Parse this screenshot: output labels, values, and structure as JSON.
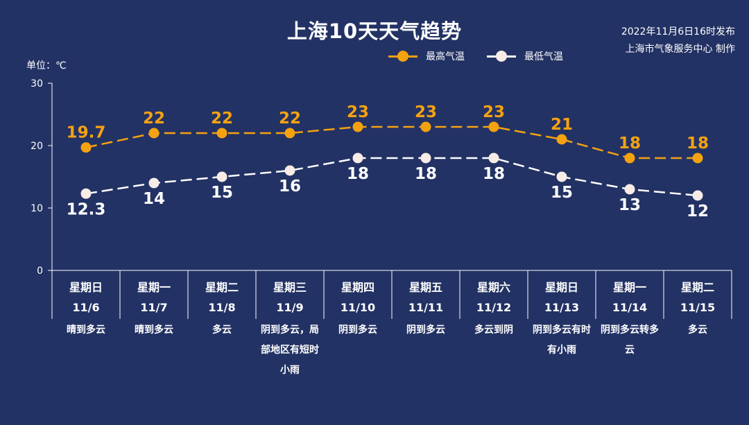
{
  "title": "上海10天天气趋势",
  "publish": {
    "line1": "2022年11月6日16时发布",
    "line2": "上海市气象服务中心 制作"
  },
  "unit_label": "单位：℃",
  "legend": {
    "high": "最高气温",
    "low": "最低气温"
  },
  "colors": {
    "background": "#233264",
    "high": "#f5a211",
    "low": "#ffffff",
    "low_marker": "#f7ece6"
  },
  "days": [
    {
      "weekday": "星期日",
      "date": "11/6",
      "weather": "晴到多云"
    },
    {
      "weekday": "星期一",
      "date": "11/7",
      "weather": "晴到多云"
    },
    {
      "weekday": "星期二",
      "date": "11/8",
      "weather": "多云"
    },
    {
      "weekday": "星期三",
      "date": "11/9",
      "weather": "阴到多云，局部地区有短时小雨"
    },
    {
      "weekday": "星期四",
      "date": "11/10",
      "weather": "阴到多云"
    },
    {
      "weekday": "星期五",
      "date": "11/11",
      "weather": "阴到多云"
    },
    {
      "weekday": "星期六",
      "date": "11/12",
      "weather": "多云到阴"
    },
    {
      "weekday": "星期日",
      "date": "11/13",
      "weather": "阴到多云有时有小雨"
    },
    {
      "weekday": "星期一",
      "date": "11/14",
      "weather": "阴到多云转多云"
    },
    {
      "weekday": "星期二",
      "date": "11/15",
      "weather": "多云"
    }
  ],
  "chart_data": {
    "type": "line",
    "title": "上海10天天气趋势",
    "ylabel": "单位：℃",
    "ylim": [
      0,
      30
    ],
    "yticks": [
      0,
      10,
      20,
      30
    ],
    "grid": false,
    "legend_position": "top-right",
    "categories": [
      "11/6",
      "11/7",
      "11/8",
      "11/9",
      "11/10",
      "11/11",
      "11/12",
      "11/13",
      "11/14",
      "11/15"
    ],
    "series": [
      {
        "name": "最高气温",
        "values": [
          19.7,
          22,
          22,
          22,
          23,
          23,
          23,
          21,
          18,
          18
        ],
        "labels": [
          "19.7",
          "22",
          "22",
          "22",
          "23",
          "23",
          "23",
          "21",
          "18",
          "18"
        ],
        "style": "dashed",
        "color": "#f5a211"
      },
      {
        "name": "最低气温",
        "values": [
          12.3,
          14,
          15,
          16,
          18,
          18,
          18,
          15,
          13,
          12
        ],
        "labels": [
          "12.3",
          "14",
          "15",
          "16",
          "18",
          "18",
          "18",
          "15",
          "13",
          "12"
        ],
        "style": "dashed",
        "color": "#ffffff"
      }
    ]
  }
}
